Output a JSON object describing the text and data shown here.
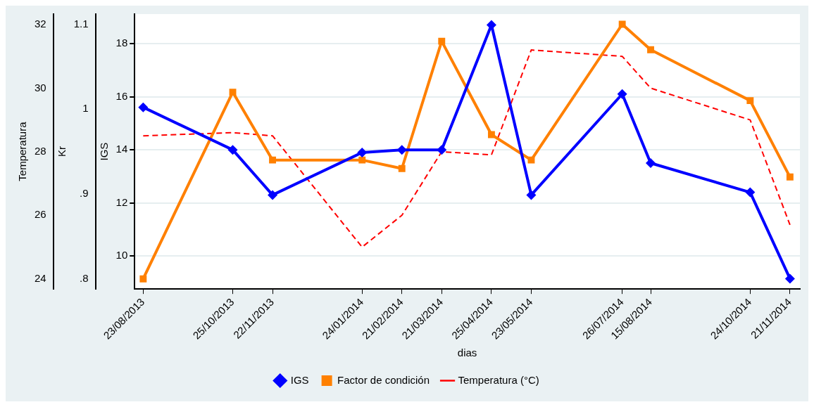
{
  "chart_data": {
    "type": "line",
    "xlabel": "dias",
    "ylabel": "IGS",
    "y2label": "Kr",
    "y3label": "Temperatura",
    "x": [
      "2013-08-23",
      "2013-10-25",
      "2013-11-22",
      "2014-01-24",
      "2014-02-21",
      "2014-03-21",
      "2014-04-25",
      "2014-05-23",
      "2014-07-26",
      "2014-08-15",
      "2014-10-24",
      "2014-11-21"
    ],
    "xlim": [
      "2013-08-17",
      "2014-11-28"
    ],
    "xticks": [
      {
        "value": "2013-08-23",
        "label": "23/08/2013"
      },
      {
        "value": "2013-10-25",
        "label": "25/10/2013"
      },
      {
        "value": "2013-11-22",
        "label": "22/11/2013"
      },
      {
        "value": "2014-01-24",
        "label": "24/01/2014"
      },
      {
        "value": "2014-02-21",
        "label": "21/02/2014"
      },
      {
        "value": "2014-03-21",
        "label": "21/03/2014"
      },
      {
        "value": "2014-04-25",
        "label": "25/04/2014"
      },
      {
        "value": "2014-05-23",
        "label": "23/05/2014"
      },
      {
        "value": "2014-07-26",
        "label": "26/07/2014"
      },
      {
        "value": "2014-08-15",
        "label": "15/08/2014"
      },
      {
        "value": "2014-10-24",
        "label": "24/10/2014"
      },
      {
        "value": "2014-11-21",
        "label": "21/11/2014"
      }
    ],
    "ylim": [
      8.76,
      19.11
    ],
    "yticks": [
      10,
      12,
      14,
      16,
      18
    ],
    "y2lim": [
      0.788,
      1.112
    ],
    "y2ticks": [
      {
        "value": 0.8,
        "label": ".8"
      },
      {
        "value": 0.9,
        "label": ".9"
      },
      1,
      1.1
    ],
    "y3lim": [
      23.68,
      32.33
    ],
    "y3ticks": [
      24,
      26,
      28,
      30,
      32
    ],
    "grid": "y",
    "legend": "bottom",
    "series": [
      {
        "name": "IGS",
        "color": "#0000ff",
        "marker": "diamond",
        "line_style": "solid",
        "values": [
          15.6,
          14.0,
          12.3,
          13.9,
          14.0,
          14.0,
          18.7,
          12.3,
          16.1,
          13.5,
          12.4,
          9.15
        ]
      },
      {
        "name": "Factor de condición",
        "color": "#ff8000",
        "marker": "square",
        "line_style": "solid",
        "axis": "y2",
        "values": [
          0.8,
          1.02,
          0.94,
          0.94,
          0.93,
          1.08,
          0.97,
          0.94,
          1.1,
          1.07,
          1.01,
          0.92
        ]
      },
      {
        "name": "Temperatura (°C)",
        "color": "#ff0000",
        "marker": "none",
        "line_style": "dashed",
        "axis": "y3",
        "values": [
          28.5,
          28.6,
          28.5,
          25.0,
          26.0,
          28.0,
          27.9,
          31.2,
          31.0,
          30.0,
          29.0,
          25.7
        ]
      }
    ]
  }
}
